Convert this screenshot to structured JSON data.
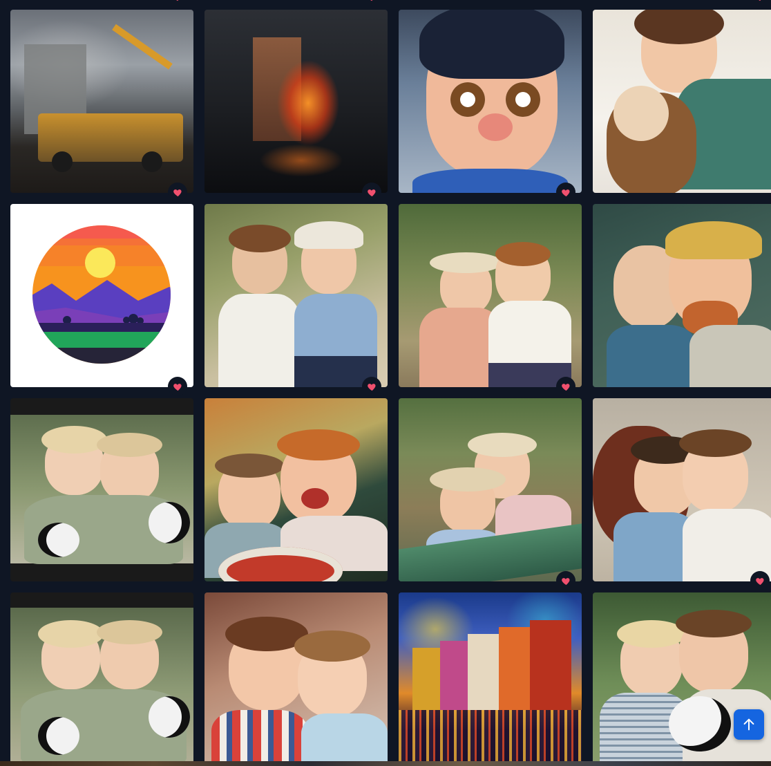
{
  "colors": {
    "background": "#0f1624",
    "heart": "#f0506e",
    "scroll_button": "#1565e0"
  },
  "gallery": {
    "items": [
      {
        "id": "construction-site",
        "favorited": true,
        "icon": "heart-icon"
      },
      {
        "id": "fire-dragon-tower",
        "favorited": true,
        "icon": "heart-icon"
      },
      {
        "id": "cartoon-boy",
        "favorited": true,
        "icon": "heart-icon"
      },
      {
        "id": "boy-with-doll",
        "favorited": false,
        "icon": "heart-icon"
      },
      {
        "id": "image-placeholder",
        "favorited": true,
        "icon": "heart-icon"
      },
      {
        "id": "two-boys-painting",
        "favorited": true,
        "icon": "heart-icon"
      },
      {
        "id": "two-boys-river-painting",
        "favorited": true,
        "icon": "heart-icon"
      },
      {
        "id": "two-boys-hat",
        "favorited": false,
        "icon": "heart-icon"
      },
      {
        "id": "two-boys-pandas",
        "favorited": false,
        "icon": "heart-icon"
      },
      {
        "id": "two-boys-crying",
        "favorited": false,
        "icon": "heart-icon"
      },
      {
        "id": "two-boys-boat",
        "favorited": true,
        "icon": "heart-icon"
      },
      {
        "id": "two-boys-plush-bull",
        "favorited": true,
        "icon": "heart-icon"
      },
      {
        "id": "two-boys-pandas-2",
        "favorited": false,
        "icon": "heart-icon"
      },
      {
        "id": "two-boys-smiling",
        "favorited": false,
        "icon": "heart-icon"
      },
      {
        "id": "colorful-city-painting",
        "favorited": false,
        "icon": "heart-icon"
      },
      {
        "id": "two-boys-panda",
        "favorited": false,
        "icon": "heart-icon"
      }
    ]
  },
  "scroll_to_top": {
    "icon": "arrow-up-icon"
  }
}
